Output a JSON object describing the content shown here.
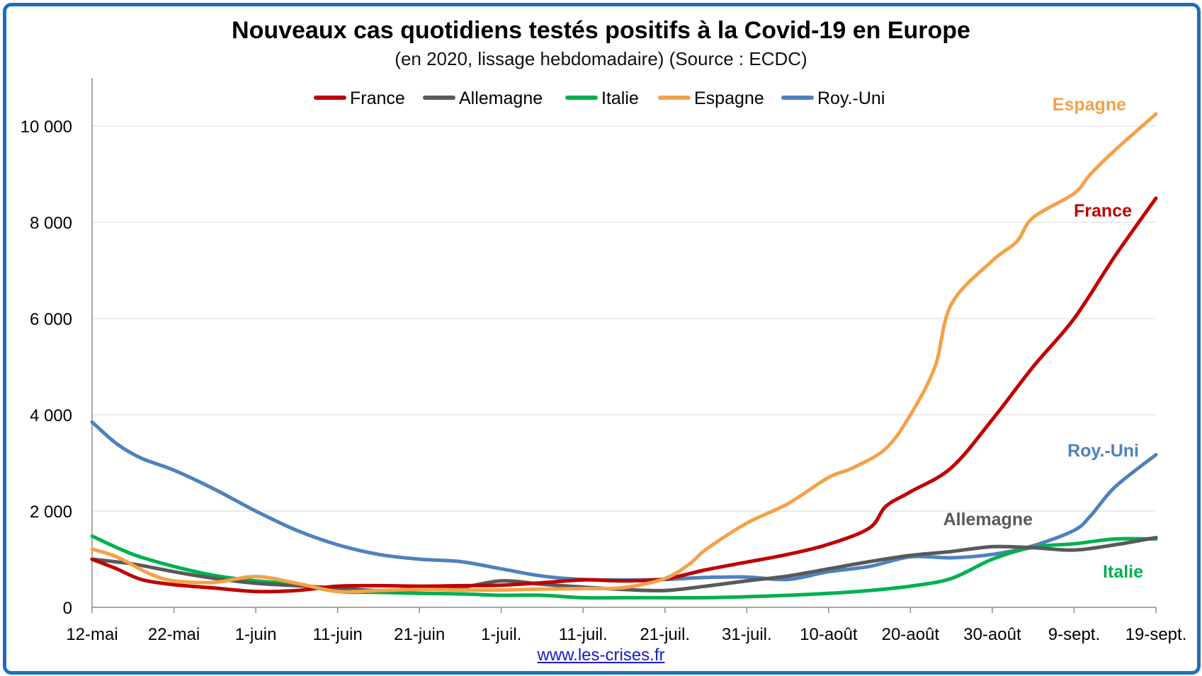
{
  "title": "Nouveaux cas quotidiens testés positifs à la Covid-19 en Europe",
  "subtitle": "(en 2020, lissage hebdomadaire) (Source : ECDC)",
  "source_link": "www.les-crises.fr",
  "chart_data": {
    "type": "line",
    "x_ticks": [
      "12-mai",
      "22-mai",
      "1-juin",
      "11-juin",
      "21-juin",
      "1-juil.",
      "11-juil.",
      "21-juil.",
      "31-juil.",
      "10-août",
      "20-août",
      "30-août",
      "9-sept.",
      "19-sept."
    ],
    "y_ticks": [
      "0",
      "2 000",
      "4 000",
      "6 000",
      "8 000",
      "10 000"
    ],
    "y_tick_values": [
      0,
      2000,
      4000,
      6000,
      8000,
      10000
    ],
    "xlim": [
      0,
      130
    ],
    "ylim": [
      0,
      11000
    ],
    "grid": "horizontal",
    "legend_position": "top",
    "series": [
      {
        "name": "France",
        "color": "#c00000",
        "x": [
          0,
          3,
          6,
          10,
          15,
          20,
          25,
          30,
          35,
          40,
          45,
          50,
          55,
          60,
          65,
          70,
          75,
          80,
          85,
          90,
          95,
          97,
          100,
          105,
          110,
          115,
          120,
          125,
          130
        ],
        "y": [
          1000,
          800,
          580,
          470,
          400,
          330,
          350,
          440,
          450,
          440,
          450,
          460,
          510,
          570,
          550,
          590,
          780,
          940,
          1100,
          1310,
          1650,
          2100,
          2400,
          2900,
          3900,
          5000,
          6000,
          7300,
          8500
        ]
      },
      {
        "name": "Allemagne",
        "color": "#595959",
        "x": [
          0,
          5,
          10,
          15,
          20,
          25,
          30,
          35,
          40,
          45,
          50,
          55,
          60,
          65,
          70,
          75,
          80,
          85,
          90,
          95,
          100,
          105,
          110,
          115,
          120,
          125,
          130
        ],
        "y": [
          1000,
          900,
          740,
          600,
          500,
          450,
          400,
          350,
          370,
          410,
          550,
          480,
          420,
          370,
          350,
          440,
          550,
          650,
          800,
          950,
          1080,
          1160,
          1260,
          1240,
          1190,
          1300,
          1450
        ]
      },
      {
        "name": "Italie",
        "color": "#00b050",
        "x": [
          0,
          5,
          10,
          15,
          20,
          25,
          30,
          35,
          40,
          45,
          50,
          55,
          60,
          65,
          70,
          75,
          80,
          85,
          90,
          95,
          100,
          105,
          110,
          115,
          120,
          125,
          130
        ],
        "y": [
          1480,
          1100,
          850,
          660,
          550,
          480,
          330,
          310,
          290,
          280,
          250,
          250,
          200,
          200,
          200,
          200,
          220,
          250,
          290,
          350,
          440,
          600,
          1000,
          1250,
          1320,
          1420,
          1420
        ]
      },
      {
        "name": "Espagne",
        "color": "#f4a148",
        "x": [
          0,
          3,
          7,
          10,
          15,
          20,
          25,
          30,
          35,
          40,
          45,
          50,
          55,
          60,
          65,
          70,
          73,
          75,
          80,
          85,
          90,
          93,
          97,
          100,
          103,
          105,
          110,
          113,
          115,
          120,
          122,
          125,
          130
        ],
        "y": [
          1210,
          1050,
          700,
          550,
          520,
          640,
          500,
          330,
          350,
          370,
          360,
          360,
          380,
          390,
          410,
          600,
          900,
          1200,
          1750,
          2150,
          2700,
          2900,
          3300,
          4000,
          5000,
          6300,
          7200,
          7600,
          8100,
          8600,
          9000,
          9500,
          10250
        ]
      },
      {
        "name": "Roy.-Uni",
        "color": "#4f81bd",
        "x": [
          0,
          3,
          6,
          10,
          15,
          20,
          25,
          30,
          35,
          40,
          45,
          50,
          55,
          60,
          65,
          70,
          75,
          80,
          85,
          90,
          95,
          100,
          105,
          110,
          115,
          120,
          122,
          125,
          130
        ],
        "y": [
          3850,
          3400,
          3100,
          2850,
          2450,
          2000,
          1600,
          1300,
          1100,
          1000,
          950,
          800,
          650,
          580,
          570,
          580,
          620,
          630,
          580,
          740,
          850,
          1050,
          1030,
          1100,
          1280,
          1600,
          1900,
          2500,
          3170
        ]
      }
    ],
    "end_labels": [
      {
        "text": "Espagne",
        "series": "Espagne"
      },
      {
        "text": "France",
        "series": "France"
      },
      {
        "text": "Roy.-Uni",
        "series": "Roy.-Uni"
      },
      {
        "text": "Allemagne",
        "series": "Allemagne"
      },
      {
        "text": "Italie",
        "series": "Italie"
      }
    ]
  }
}
